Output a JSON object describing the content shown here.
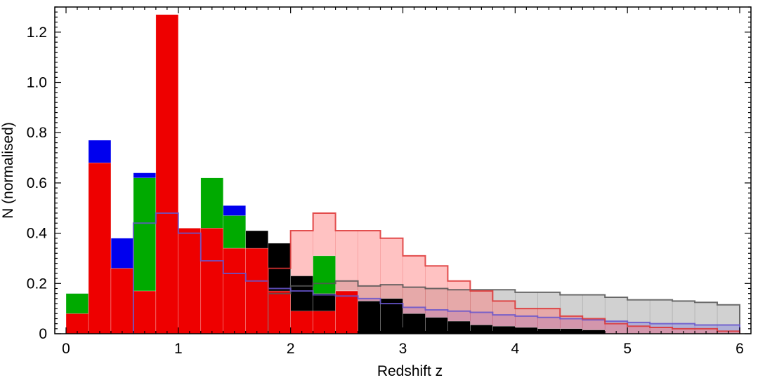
{
  "chart_data": {
    "type": "bar",
    "title": "",
    "xlabel": "Redshift z",
    "ylabel": "N (normalised)",
    "xlim": [
      0,
      6
    ],
    "ylim": [
      0,
      1.3
    ],
    "x_ticks": [
      0,
      1,
      2,
      3,
      4,
      5,
      6
    ],
    "y_ticks": [
      0,
      0.2,
      0.4,
      0.6,
      0.8,
      1.0,
      1.2
    ],
    "y_tick_labels": [
      "0",
      "0.2",
      "0.4",
      "0.6",
      "0.8",
      "1.0",
      "1.2"
    ],
    "grid": false,
    "legend": "none",
    "bin_width": 0.2,
    "bar_series": [
      {
        "color": "#0000ee",
        "bins": [
          [
            0.0,
            0.16
          ],
          [
            0.2,
            0.77
          ],
          [
            0.4,
            0.38
          ],
          [
            0.6,
            0.64
          ],
          [
            0.8,
            0.48
          ],
          [
            1.0,
            0.42
          ],
          [
            1.2,
            0.42
          ],
          [
            1.4,
            0.51
          ],
          [
            1.6,
            0.34
          ],
          [
            1.8,
            0.34
          ],
          [
            2.0,
            0.17
          ],
          [
            2.2,
            0.06
          ],
          [
            2.4,
            0.09
          ]
        ]
      },
      {
        "color": "#00aa00",
        "bins": [
          [
            0.0,
            0.16
          ],
          [
            0.2,
            0.68
          ],
          [
            0.4,
            0.26
          ],
          [
            0.6,
            0.62
          ],
          [
            0.8,
            0.47
          ],
          [
            1.0,
            0.42
          ],
          [
            1.2,
            0.62
          ],
          [
            1.4,
            0.47
          ],
          [
            1.6,
            0.34
          ],
          [
            1.8,
            0.34
          ],
          [
            2.0,
            0.16
          ],
          [
            2.2,
            0.31
          ],
          [
            2.4,
            0.17
          ]
        ]
      },
      {
        "color": "#000000",
        "bins": [
          [
            0.0,
            0.04
          ],
          [
            0.2,
            0.24
          ],
          [
            0.4,
            0.26
          ],
          [
            0.6,
            0.17
          ],
          [
            0.8,
            0.44
          ],
          [
            1.0,
            0.42
          ],
          [
            1.2,
            0.42
          ],
          [
            1.4,
            0.34
          ],
          [
            1.6,
            0.41
          ],
          [
            1.8,
            0.36
          ],
          [
            2.0,
            0.23
          ],
          [
            2.2,
            0.16
          ],
          [
            2.4,
            0.17
          ],
          [
            2.6,
            0.13
          ],
          [
            2.8,
            0.14
          ],
          [
            3.0,
            0.08
          ],
          [
            3.2,
            0.065
          ],
          [
            3.4,
            0.05
          ],
          [
            3.6,
            0.035
          ],
          [
            3.8,
            0.03
          ],
          [
            4.0,
            0.025
          ],
          [
            4.2,
            0.02
          ],
          [
            4.4,
            0.02
          ],
          [
            4.6,
            0.015
          ]
        ]
      },
      {
        "color": "#ee0000",
        "bins": [
          [
            0.0,
            0.08
          ],
          [
            0.2,
            0.68
          ],
          [
            0.4,
            0.26
          ],
          [
            0.6,
            0.17
          ],
          [
            0.8,
            1.27
          ],
          [
            1.0,
            0.42
          ],
          [
            1.2,
            0.42
          ],
          [
            1.4,
            0.34
          ],
          [
            1.6,
            0.34
          ],
          [
            1.8,
            0.17
          ],
          [
            2.0,
            0.09
          ],
          [
            2.2,
            0.09
          ],
          [
            2.4,
            0.17
          ]
        ]
      }
    ],
    "step_series": [
      {
        "color": "#555555",
        "fill": "#999999",
        "values": [
          [
            1.8,
            0.16
          ],
          [
            2.0,
            0.19
          ],
          [
            2.2,
            0.2
          ],
          [
            2.4,
            0.21
          ],
          [
            2.6,
            0.19
          ],
          [
            2.8,
            0.195
          ],
          [
            3.0,
            0.185
          ],
          [
            3.2,
            0.18
          ],
          [
            3.4,
            0.175
          ],
          [
            3.6,
            0.175
          ],
          [
            3.8,
            0.175
          ],
          [
            4.0,
            0.165
          ],
          [
            4.2,
            0.165
          ],
          [
            4.4,
            0.155
          ],
          [
            4.6,
            0.155
          ],
          [
            4.8,
            0.145
          ],
          [
            5.0,
            0.135
          ],
          [
            5.2,
            0.135
          ],
          [
            5.4,
            0.13
          ],
          [
            5.6,
            0.125
          ],
          [
            5.8,
            0.115
          ]
        ]
      },
      {
        "color": "#6655cc",
        "fill": "#8888dd",
        "values": [
          [
            0.6,
            0.44
          ],
          [
            0.8,
            0.48
          ],
          [
            1.0,
            0.4
          ],
          [
            1.2,
            0.29
          ],
          [
            1.4,
            0.24
          ],
          [
            1.6,
            0.21
          ],
          [
            1.8,
            0.18
          ],
          [
            2.0,
            0.17
          ],
          [
            2.2,
            0.155
          ],
          [
            2.4,
            0.15
          ],
          [
            2.6,
            0.14
          ],
          [
            2.8,
            0.12
          ],
          [
            3.0,
            0.105
          ],
          [
            3.2,
            0.095
          ],
          [
            3.4,
            0.09
          ],
          [
            3.6,
            0.085
          ],
          [
            3.8,
            0.075
          ],
          [
            4.0,
            0.07
          ],
          [
            4.2,
            0.065
          ],
          [
            4.4,
            0.06
          ],
          [
            4.6,
            0.055
          ],
          [
            4.8,
            0.05
          ],
          [
            5.0,
            0.045
          ],
          [
            5.2,
            0.04
          ],
          [
            5.4,
            0.04
          ],
          [
            5.6,
            0.035
          ],
          [
            5.8,
            0.035
          ]
        ]
      },
      {
        "color": "#dd3333",
        "fill": "#ff7777",
        "values": [
          [
            1.8,
            0.26
          ],
          [
            2.0,
            0.41
          ],
          [
            2.2,
            0.48
          ],
          [
            2.4,
            0.41
          ],
          [
            2.6,
            0.41
          ],
          [
            2.8,
            0.38
          ],
          [
            3.0,
            0.31
          ],
          [
            3.2,
            0.27
          ],
          [
            3.4,
            0.21
          ],
          [
            3.6,
            0.17
          ],
          [
            3.8,
            0.13
          ],
          [
            4.0,
            0.1
          ],
          [
            4.2,
            0.1
          ],
          [
            4.4,
            0.07
          ],
          [
            4.6,
            0.06
          ],
          [
            4.8,
            0.04
          ],
          [
            5.0,
            0.03
          ],
          [
            5.2,
            0.025
          ],
          [
            5.4,
            0.02
          ],
          [
            5.6,
            0.02
          ],
          [
            5.8,
            0.01
          ]
        ]
      }
    ]
  }
}
